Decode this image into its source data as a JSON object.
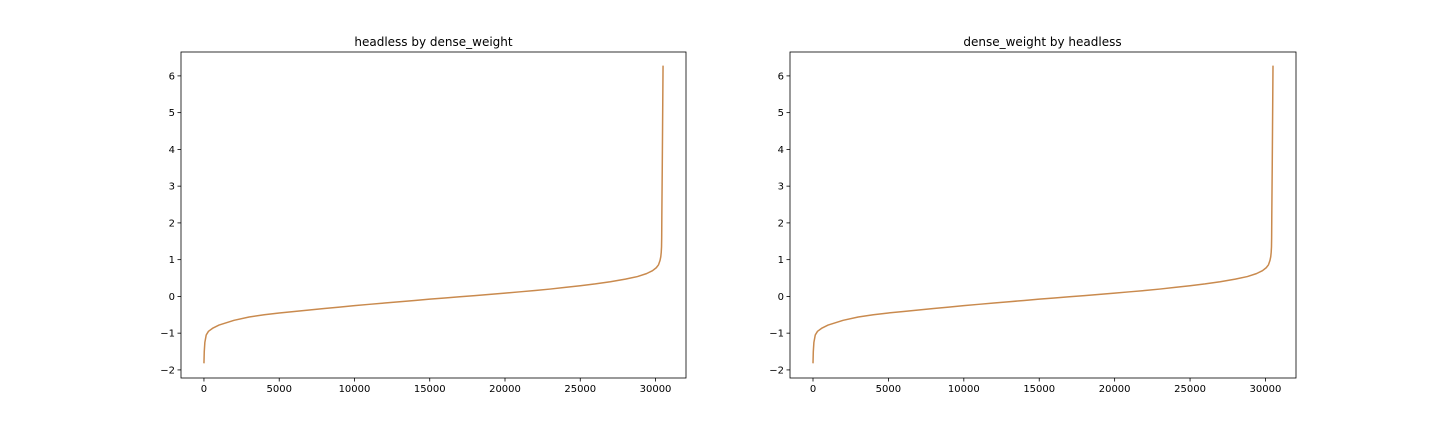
{
  "chart_data": [
    {
      "type": "line",
      "title": "headless by dense_weight",
      "xlabel": "",
      "ylabel": "",
      "xlim": [
        -1525,
        32025
      ],
      "ylim": [
        -2.22,
        6.65
      ],
      "xticks": [
        0,
        5000,
        10000,
        15000,
        20000,
        25000,
        30000
      ],
      "yticks": [
        -2,
        -1,
        0,
        1,
        2,
        3,
        4,
        5,
        6
      ],
      "grid": false,
      "series": [
        {
          "color": "#c98a4e",
          "x": [
            0,
            20,
            60,
            150,
            300,
            600,
            1000,
            2000,
            3000,
            4000,
            5000,
            6000,
            7000,
            8000,
            9000,
            10000,
            11000,
            12000,
            13000,
            14000,
            15000,
            16000,
            17000,
            18000,
            19000,
            20000,
            21000,
            22000,
            23000,
            24000,
            25000,
            26000,
            27000,
            28000,
            28800,
            29400,
            29800,
            30050,
            30200,
            30300,
            30350,
            30380,
            30400,
            30410,
            30420,
            30450,
            30480,
            30500
          ],
          "y": [
            -1.82,
            -1.5,
            -1.25,
            -1.05,
            -0.95,
            -0.86,
            -0.78,
            -0.65,
            -0.56,
            -0.5,
            -0.45,
            -0.41,
            -0.37,
            -0.33,
            -0.29,
            -0.25,
            -0.215,
            -0.18,
            -0.145,
            -0.11,
            -0.075,
            -0.045,
            -0.01,
            0.02,
            0.055,
            0.09,
            0.125,
            0.16,
            0.2,
            0.245,
            0.29,
            0.34,
            0.4,
            0.47,
            0.54,
            0.62,
            0.7,
            0.78,
            0.86,
            0.98,
            1.08,
            1.2,
            1.35,
            1.6,
            2.2,
            3.6,
            5.2,
            6.28
          ]
        }
      ]
    },
    {
      "type": "line",
      "title": "dense_weight by headless",
      "xlabel": "",
      "ylabel": "",
      "xlim": [
        -1525,
        32025
      ],
      "ylim": [
        -2.22,
        6.65
      ],
      "xticks": [
        0,
        5000,
        10000,
        15000,
        20000,
        25000,
        30000
      ],
      "yticks": [
        -2,
        -1,
        0,
        1,
        2,
        3,
        4,
        5,
        6
      ],
      "grid": false,
      "series": [
        {
          "color": "#c98a4e",
          "x": [
            0,
            20,
            60,
            150,
            300,
            600,
            1000,
            2000,
            3000,
            4000,
            5000,
            6000,
            7000,
            8000,
            9000,
            10000,
            11000,
            12000,
            13000,
            14000,
            15000,
            16000,
            17000,
            18000,
            19000,
            20000,
            21000,
            22000,
            23000,
            24000,
            25000,
            26000,
            27000,
            28000,
            28800,
            29400,
            29800,
            30050,
            30200,
            30300,
            30350,
            30380,
            30400,
            30410,
            30420,
            30450,
            30480,
            30500
          ],
          "y": [
            -1.82,
            -1.5,
            -1.25,
            -1.05,
            -0.95,
            -0.86,
            -0.78,
            -0.65,
            -0.56,
            -0.5,
            -0.45,
            -0.41,
            -0.37,
            -0.33,
            -0.29,
            -0.25,
            -0.215,
            -0.18,
            -0.145,
            -0.11,
            -0.075,
            -0.045,
            -0.01,
            0.02,
            0.055,
            0.09,
            0.125,
            0.16,
            0.2,
            0.245,
            0.29,
            0.34,
            0.4,
            0.47,
            0.54,
            0.62,
            0.7,
            0.78,
            0.86,
            0.98,
            1.08,
            1.2,
            1.35,
            1.6,
            2.2,
            3.6,
            5.2,
            6.28
          ]
        }
      ]
    }
  ]
}
